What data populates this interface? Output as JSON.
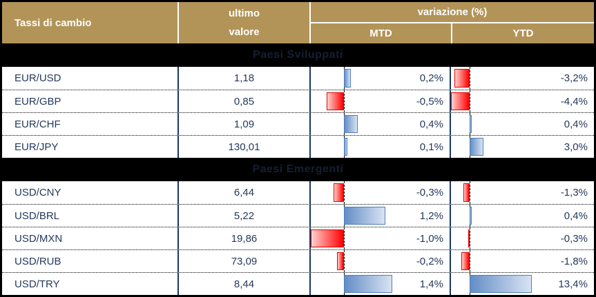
{
  "title": "Tassi di cambio",
  "header": {
    "value_line1": "ultimo",
    "value_line2": "valore",
    "variation_label": "variazione (%)",
    "mtd_label": "MTD",
    "ytd_label": "YTD"
  },
  "colors": {
    "header_bg": "#B29459",
    "header_text": "#FFFFFF",
    "body_text": "#24385B",
    "grid_line": "#17375E",
    "section_text": "#161F31",
    "positive_bar": "#638EC6",
    "negative_bar": "#FF0000"
  },
  "bar_config": {
    "mtd": {
      "axis_frac": 0.24,
      "scale_frac_per_pct": 0.248
    },
    "ytd": {
      "axis_frac": 0.13,
      "scale_frac_per_pct": 0.0324
    }
  },
  "sections": [
    {
      "label": "Paesi Sviluppati",
      "rows": [
        {
          "pair": "EUR/USD",
          "value": "1,18",
          "mtd": 0.2,
          "mtd_label": "0,2%",
          "ytd": -3.2,
          "ytd_label": "-3,2%"
        },
        {
          "pair": "EUR/GBP",
          "value": "0,85",
          "mtd": -0.5,
          "mtd_label": "-0,5%",
          "ytd": -4.4,
          "ytd_label": "-4,4%"
        },
        {
          "pair": "EUR/CHF",
          "value": "1,09",
          "mtd": 0.4,
          "mtd_label": "0,4%",
          "ytd": 0.4,
          "ytd_label": "0,4%"
        },
        {
          "pair": "EUR/JPY",
          "value": "130,01",
          "mtd": 0.1,
          "mtd_label": "0,1%",
          "ytd": 3.0,
          "ytd_label": "3,0%"
        }
      ]
    },
    {
      "label": "Paesi Emergenti",
      "rows": [
        {
          "pair": "USD/CNY",
          "value": "6,44",
          "mtd": -0.3,
          "mtd_label": "-0,3%",
          "ytd": -1.3,
          "ytd_label": "-1,3%"
        },
        {
          "pair": "USD/BRL",
          "value": "5,22",
          "mtd": 1.2,
          "mtd_label": "1,2%",
          "ytd": 0.4,
          "ytd_label": "0,4%"
        },
        {
          "pair": "USD/MXN",
          "value": "19,86",
          "mtd": -1.0,
          "mtd_label": "-1,0%",
          "ytd": -0.3,
          "ytd_label": "-0,3%"
        },
        {
          "pair": "USD/RUB",
          "value": "73,09",
          "mtd": -0.2,
          "mtd_label": "-0,2%",
          "ytd": -1.8,
          "ytd_label": "-1,8%"
        },
        {
          "pair": "USD/TRY",
          "value": "8,44",
          "mtd": 1.4,
          "mtd_label": "1,4%",
          "ytd": 13.4,
          "ytd_label": "13,4%"
        }
      ]
    }
  ],
  "chart_data": {
    "type": "table",
    "title": "Tassi di cambio",
    "columns": [
      "Tassi di cambio",
      "ultimo valore",
      "variazione (%) MTD",
      "variazione (%) YTD"
    ],
    "groups": [
      {
        "name": "Paesi Sviluppati",
        "rows": [
          [
            "EUR/USD",
            1.18,
            0.2,
            -3.2
          ],
          [
            "EUR/GBP",
            0.85,
            -0.5,
            -4.4
          ],
          [
            "EUR/CHF",
            1.09,
            0.4,
            0.4
          ],
          [
            "EUR/JPY",
            130.01,
            0.1,
            3.0
          ]
        ]
      },
      {
        "name": "Paesi Emergenti",
        "rows": [
          [
            "USD/CNY",
            6.44,
            -0.3,
            -1.3
          ],
          [
            "USD/BRL",
            5.22,
            1.2,
            0.4
          ],
          [
            "USD/MXN",
            19.86,
            -1.0,
            -0.3
          ],
          [
            "USD/RUB",
            73.09,
            -0.2,
            -1.8
          ],
          [
            "USD/TRY",
            8.44,
            1.4,
            13.4
          ]
        ]
      }
    ],
    "notes": "Data bars: red = negative, blue = positive; per-column dashed zero axis; decimal comma formatting"
  }
}
